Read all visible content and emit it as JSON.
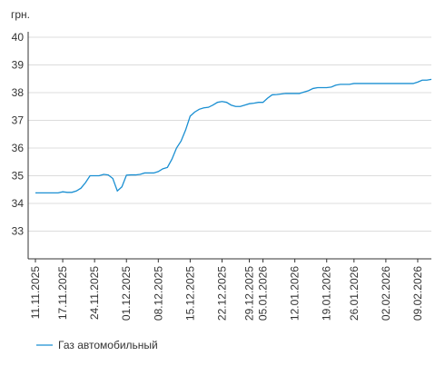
{
  "chart_data": {
    "type": "line",
    "y_unit_label": "грн.",
    "categories": [
      "11.11.2025",
      null,
      null,
      null,
      null,
      null,
      "17.11.2025",
      null,
      null,
      null,
      null,
      null,
      null,
      "24.11.2025",
      null,
      null,
      null,
      null,
      null,
      null,
      "01.12.2025",
      null,
      null,
      null,
      null,
      null,
      null,
      "08.12.2025",
      null,
      null,
      null,
      null,
      null,
      null,
      "15.12.2025",
      null,
      null,
      null,
      null,
      null,
      null,
      "22.12.2025",
      null,
      null,
      null,
      null,
      null,
      "29.12.2025",
      null,
      null,
      "05.01.2026",
      null,
      null,
      null,
      null,
      null,
      null,
      "12.01.2026",
      null,
      null,
      null,
      null,
      null,
      null,
      "19.01.2026",
      null,
      null,
      null,
      null,
      null,
      "26.01.2026",
      null,
      null,
      null,
      null,
      null,
      null,
      "02.02.2026",
      null,
      null,
      null,
      null,
      null,
      null,
      "09.02.2026",
      null,
      null,
      null
    ],
    "series": [
      {
        "name": "Газ автомобильный",
        "color": "#1a8fd2",
        "values": [
          34.38,
          34.38,
          34.38,
          34.38,
          34.38,
          34.38,
          34.42,
          34.4,
          34.4,
          34.45,
          34.55,
          34.75,
          35.0,
          35.0,
          35.0,
          35.05,
          35.03,
          34.9,
          34.45,
          34.6,
          35.02,
          35.03,
          35.03,
          35.05,
          35.1,
          35.1,
          35.1,
          35.15,
          35.25,
          35.3,
          35.6,
          36.0,
          36.25,
          36.65,
          37.15,
          37.3,
          37.4,
          37.45,
          37.47,
          37.55,
          37.65,
          37.68,
          37.65,
          37.55,
          37.5,
          37.5,
          37.55,
          37.6,
          37.62,
          37.65,
          37.65,
          37.8,
          37.92,
          37.93,
          37.95,
          37.97,
          37.97,
          37.97,
          37.97,
          38.02,
          38.07,
          38.15,
          38.18,
          38.18,
          38.18,
          38.2,
          38.27,
          38.3,
          38.3,
          38.3,
          38.33,
          38.33,
          38.33,
          38.33,
          38.33,
          38.33,
          38.33,
          38.33,
          38.33,
          38.33,
          38.33,
          38.33,
          38.33,
          38.33,
          38.38,
          38.45,
          38.45,
          38.48
        ]
      }
    ],
    "ylim": [
      32,
      40
    ],
    "yticks": [
      33,
      34,
      35,
      36,
      37,
      38,
      39,
      40
    ],
    "grid": true
  }
}
